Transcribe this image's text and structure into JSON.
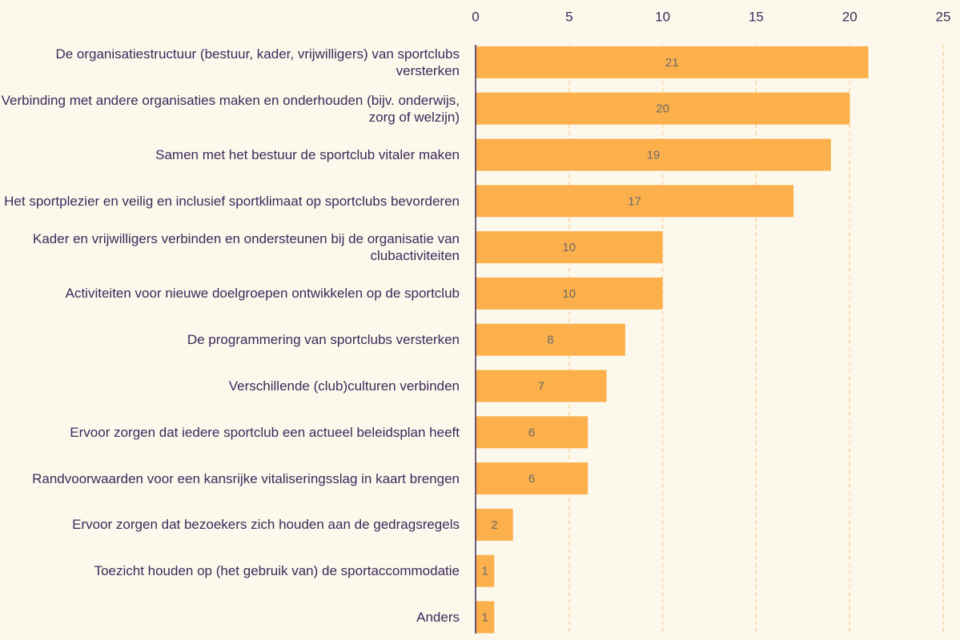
{
  "chart_data": {
    "type": "bar",
    "orientation": "horizontal",
    "categories": [
      "De organisatiestructuur (bestuur, kader, vrijwilligers) van sportclubs versterken",
      "Verbinding met andere organisaties maken en onderhouden (bijv. onderwijs, zorg of welzijn)",
      "Samen met het bestuur de sportclub vitaler maken",
      "Het sportplezier en veilig en inclusief sportklimaat op sportclubs bevorderen",
      "Kader en vrijwilligers verbinden en ondersteunen bij de organisatie van clubactiviteiten",
      "Activiteiten voor nieuwe doelgroepen ontwikkelen op de sportclub",
      "De programmering van sportclubs versterken",
      "Verschillende (club)culturen verbinden",
      "Ervoor zorgen dat iedere sportclub een actueel beleidsplan heeft",
      "Randvoorwaarden voor een kansrijke vitaliseringsslag in kaart brengen",
      "Ervoor zorgen dat bezoekers zich houden aan de gedragsregels",
      "Toezicht houden op (het gebruik van) de sportaccommodatie",
      "Anders"
    ],
    "values": [
      21,
      20,
      19,
      17,
      10,
      10,
      8,
      7,
      6,
      6,
      2,
      1,
      1
    ],
    "color": "#fbb04c",
    "xlim": [
      0,
      25
    ],
    "xticks": [
      0,
      5,
      10,
      15,
      20,
      25
    ],
    "grid": true
  }
}
